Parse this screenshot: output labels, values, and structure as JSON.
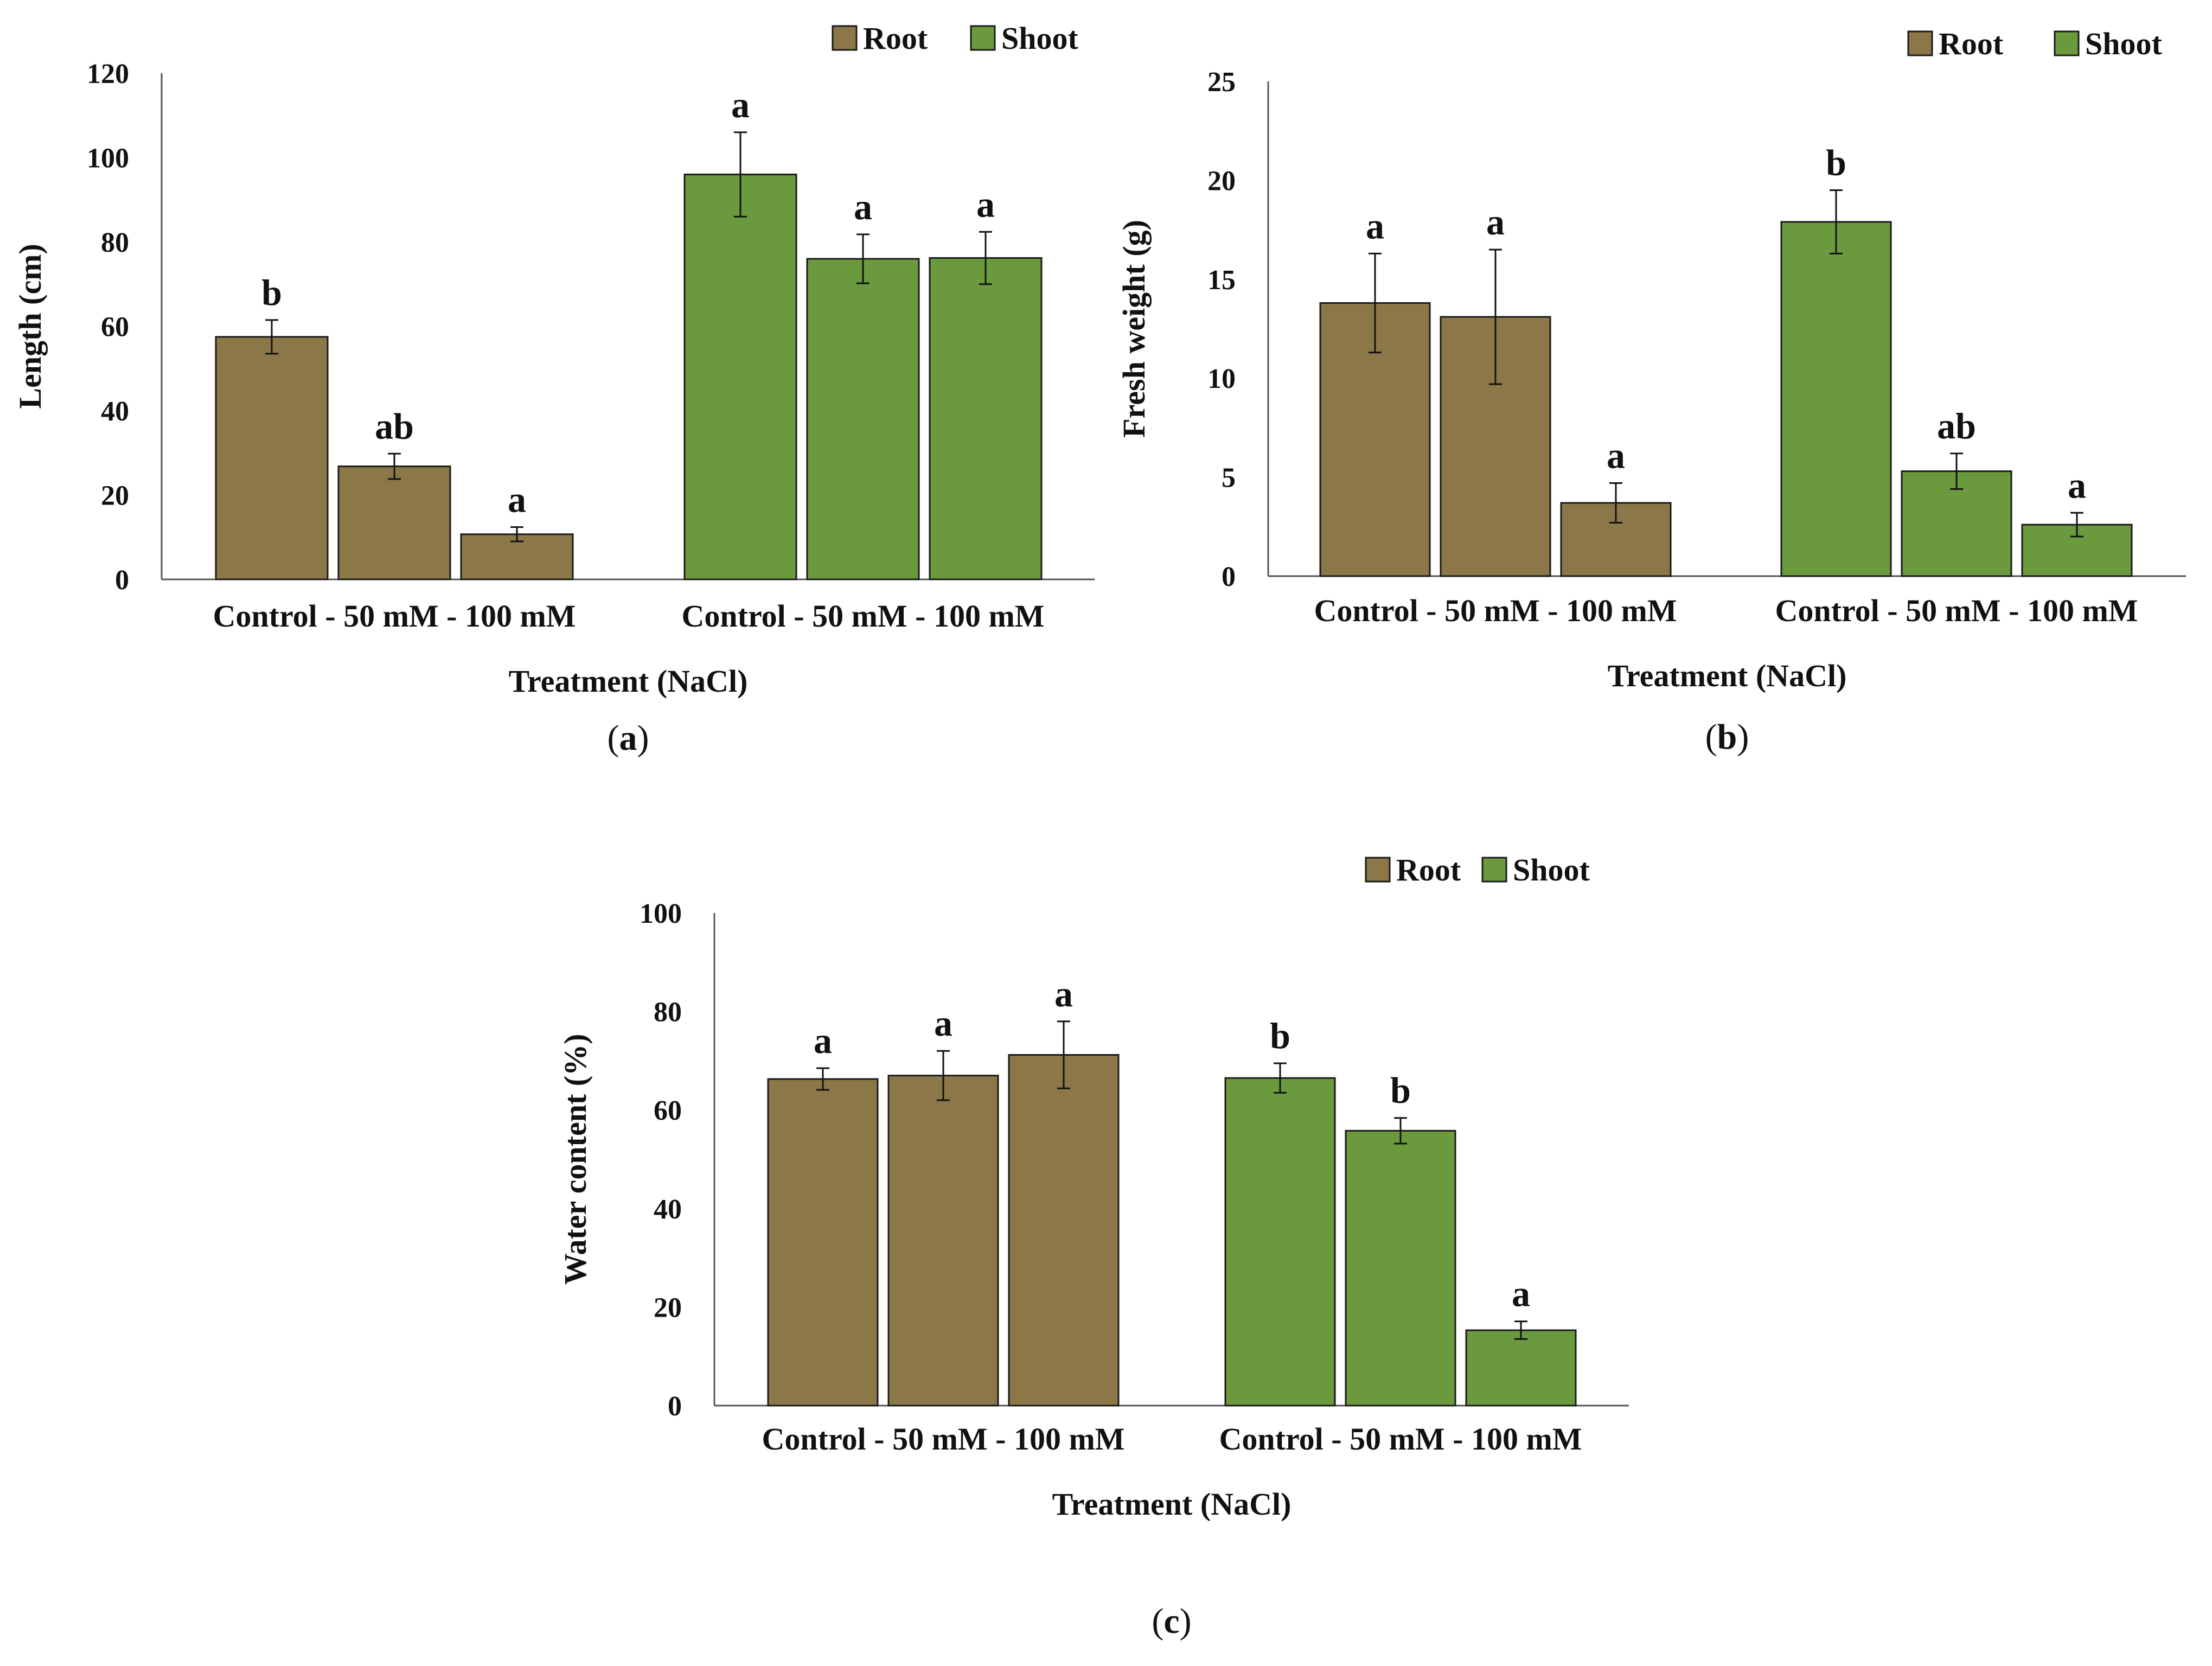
{
  "figure": {
    "series_colors": {
      "Root": "#8B7748",
      "Shoot": "#6A993E"
    },
    "axis_color": "#555555"
  },
  "chart_data": [
    {
      "panel": "(a)",
      "panel_letter": "a",
      "type": "bar",
      "legend": [
        "Root",
        "Shoot"
      ],
      "legend_placement": "top-right",
      "ylabel": "Length (cm)",
      "xlabel": "Treatment (NaCl)",
      "ylim": [
        0,
        120
      ],
      "yticks": [
        0,
        20,
        40,
        60,
        80,
        100,
        120
      ],
      "group_labels": [
        "Control - 50 mM - 100 mM",
        "Control - 50 mM - 100 mM"
      ],
      "categories": [
        "Control",
        "50 mM",
        "100 mM"
      ],
      "series": [
        {
          "name": "Root",
          "values": [
            57.5,
            26.8,
            10.7
          ],
          "errors": [
            4.0,
            3.0,
            1.7
          ],
          "labels": [
            "b",
            "ab",
            "a"
          ]
        },
        {
          "name": "Shoot",
          "values": [
            96.0,
            76.0,
            76.2
          ],
          "errors": [
            10.0,
            5.8,
            6.2
          ],
          "labels": [
            "a",
            "a",
            "a"
          ]
        }
      ]
    },
    {
      "panel": "(b)",
      "panel_letter": "b",
      "type": "bar",
      "legend": [
        "Root",
        "Shoot"
      ],
      "legend_placement": "top-right",
      "ylabel": "Fresh weight (g)",
      "xlabel": "Treatment (NaCl)",
      "ylim": [
        0,
        25
      ],
      "yticks": [
        0,
        5,
        10,
        15,
        20,
        25
      ],
      "group_labels": [
        "Control - 50 mM - 100 mM",
        "Control - 50 mM - 100 mM"
      ],
      "categories": [
        "Control",
        "50 mM",
        "100 mM"
      ],
      "series": [
        {
          "name": "Root",
          "values": [
            13.8,
            13.1,
            3.7
          ],
          "errors": [
            2.5,
            3.4,
            1.0
          ],
          "labels": [
            "a",
            "a",
            "a"
          ]
        },
        {
          "name": "Shoot",
          "values": [
            17.9,
            5.3,
            2.6
          ],
          "errors": [
            1.6,
            0.9,
            0.6
          ],
          "labels": [
            "b",
            "ab",
            "a"
          ]
        }
      ]
    },
    {
      "panel": "(c)",
      "panel_letter": "c",
      "type": "bar",
      "legend": [
        "Root",
        "Shoot"
      ],
      "legend_placement": "top-right",
      "ylabel": "Water content (%)",
      "xlabel": "Treatment (NaCl)",
      "ylim": [
        0,
        100
      ],
      "yticks": [
        0,
        20,
        40,
        60,
        80,
        100
      ],
      "group_labels": [
        "Control - 50 mM - 100 mM",
        "Control - 50 mM - 100 mM"
      ],
      "categories": [
        "Control",
        "50 mM",
        "100 mM"
      ],
      "series": [
        {
          "name": "Root",
          "values": [
            66.3,
            67.0,
            71.2
          ],
          "errors": [
            2.2,
            5.0,
            6.8
          ],
          "labels": [
            "a",
            "a",
            "a"
          ]
        },
        {
          "name": "Shoot",
          "values": [
            66.5,
            55.8,
            15.3
          ],
          "errors": [
            3.0,
            2.6,
            1.8
          ],
          "labels": [
            "b",
            "b",
            "a"
          ]
        }
      ]
    }
  ]
}
